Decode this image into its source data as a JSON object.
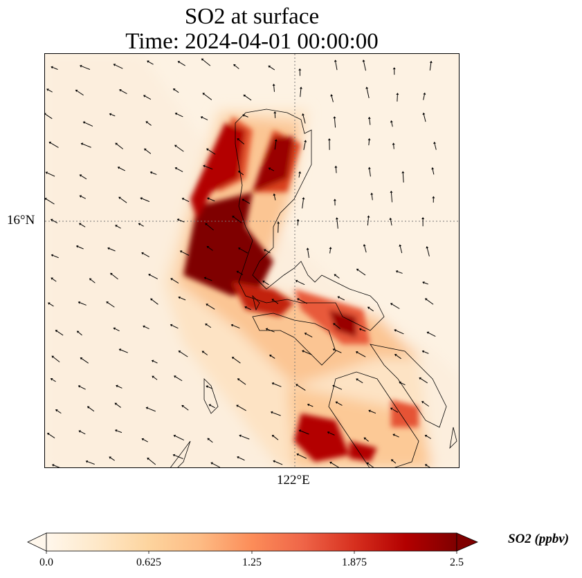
{
  "title": {
    "line1": "SO2 at surface",
    "line2": "Time: 2024-04-01 00:00:00"
  },
  "axes": {
    "lat_label": "16°N",
    "lon_label": "122°E"
  },
  "colorbar": {
    "label": "SO2 (ppbv)",
    "min": 0.0,
    "max": 2.5,
    "ticks": [
      "0.0",
      "0.625",
      "1.25",
      "1.875",
      "2.5"
    ],
    "colormap": [
      "#fff7ec",
      "#fee8c8",
      "#fdd49e",
      "#fdbb84",
      "#fc8d59",
      "#ef6548",
      "#d7301f",
      "#b30000",
      "#7f0000"
    ],
    "extend": "both"
  }
}
